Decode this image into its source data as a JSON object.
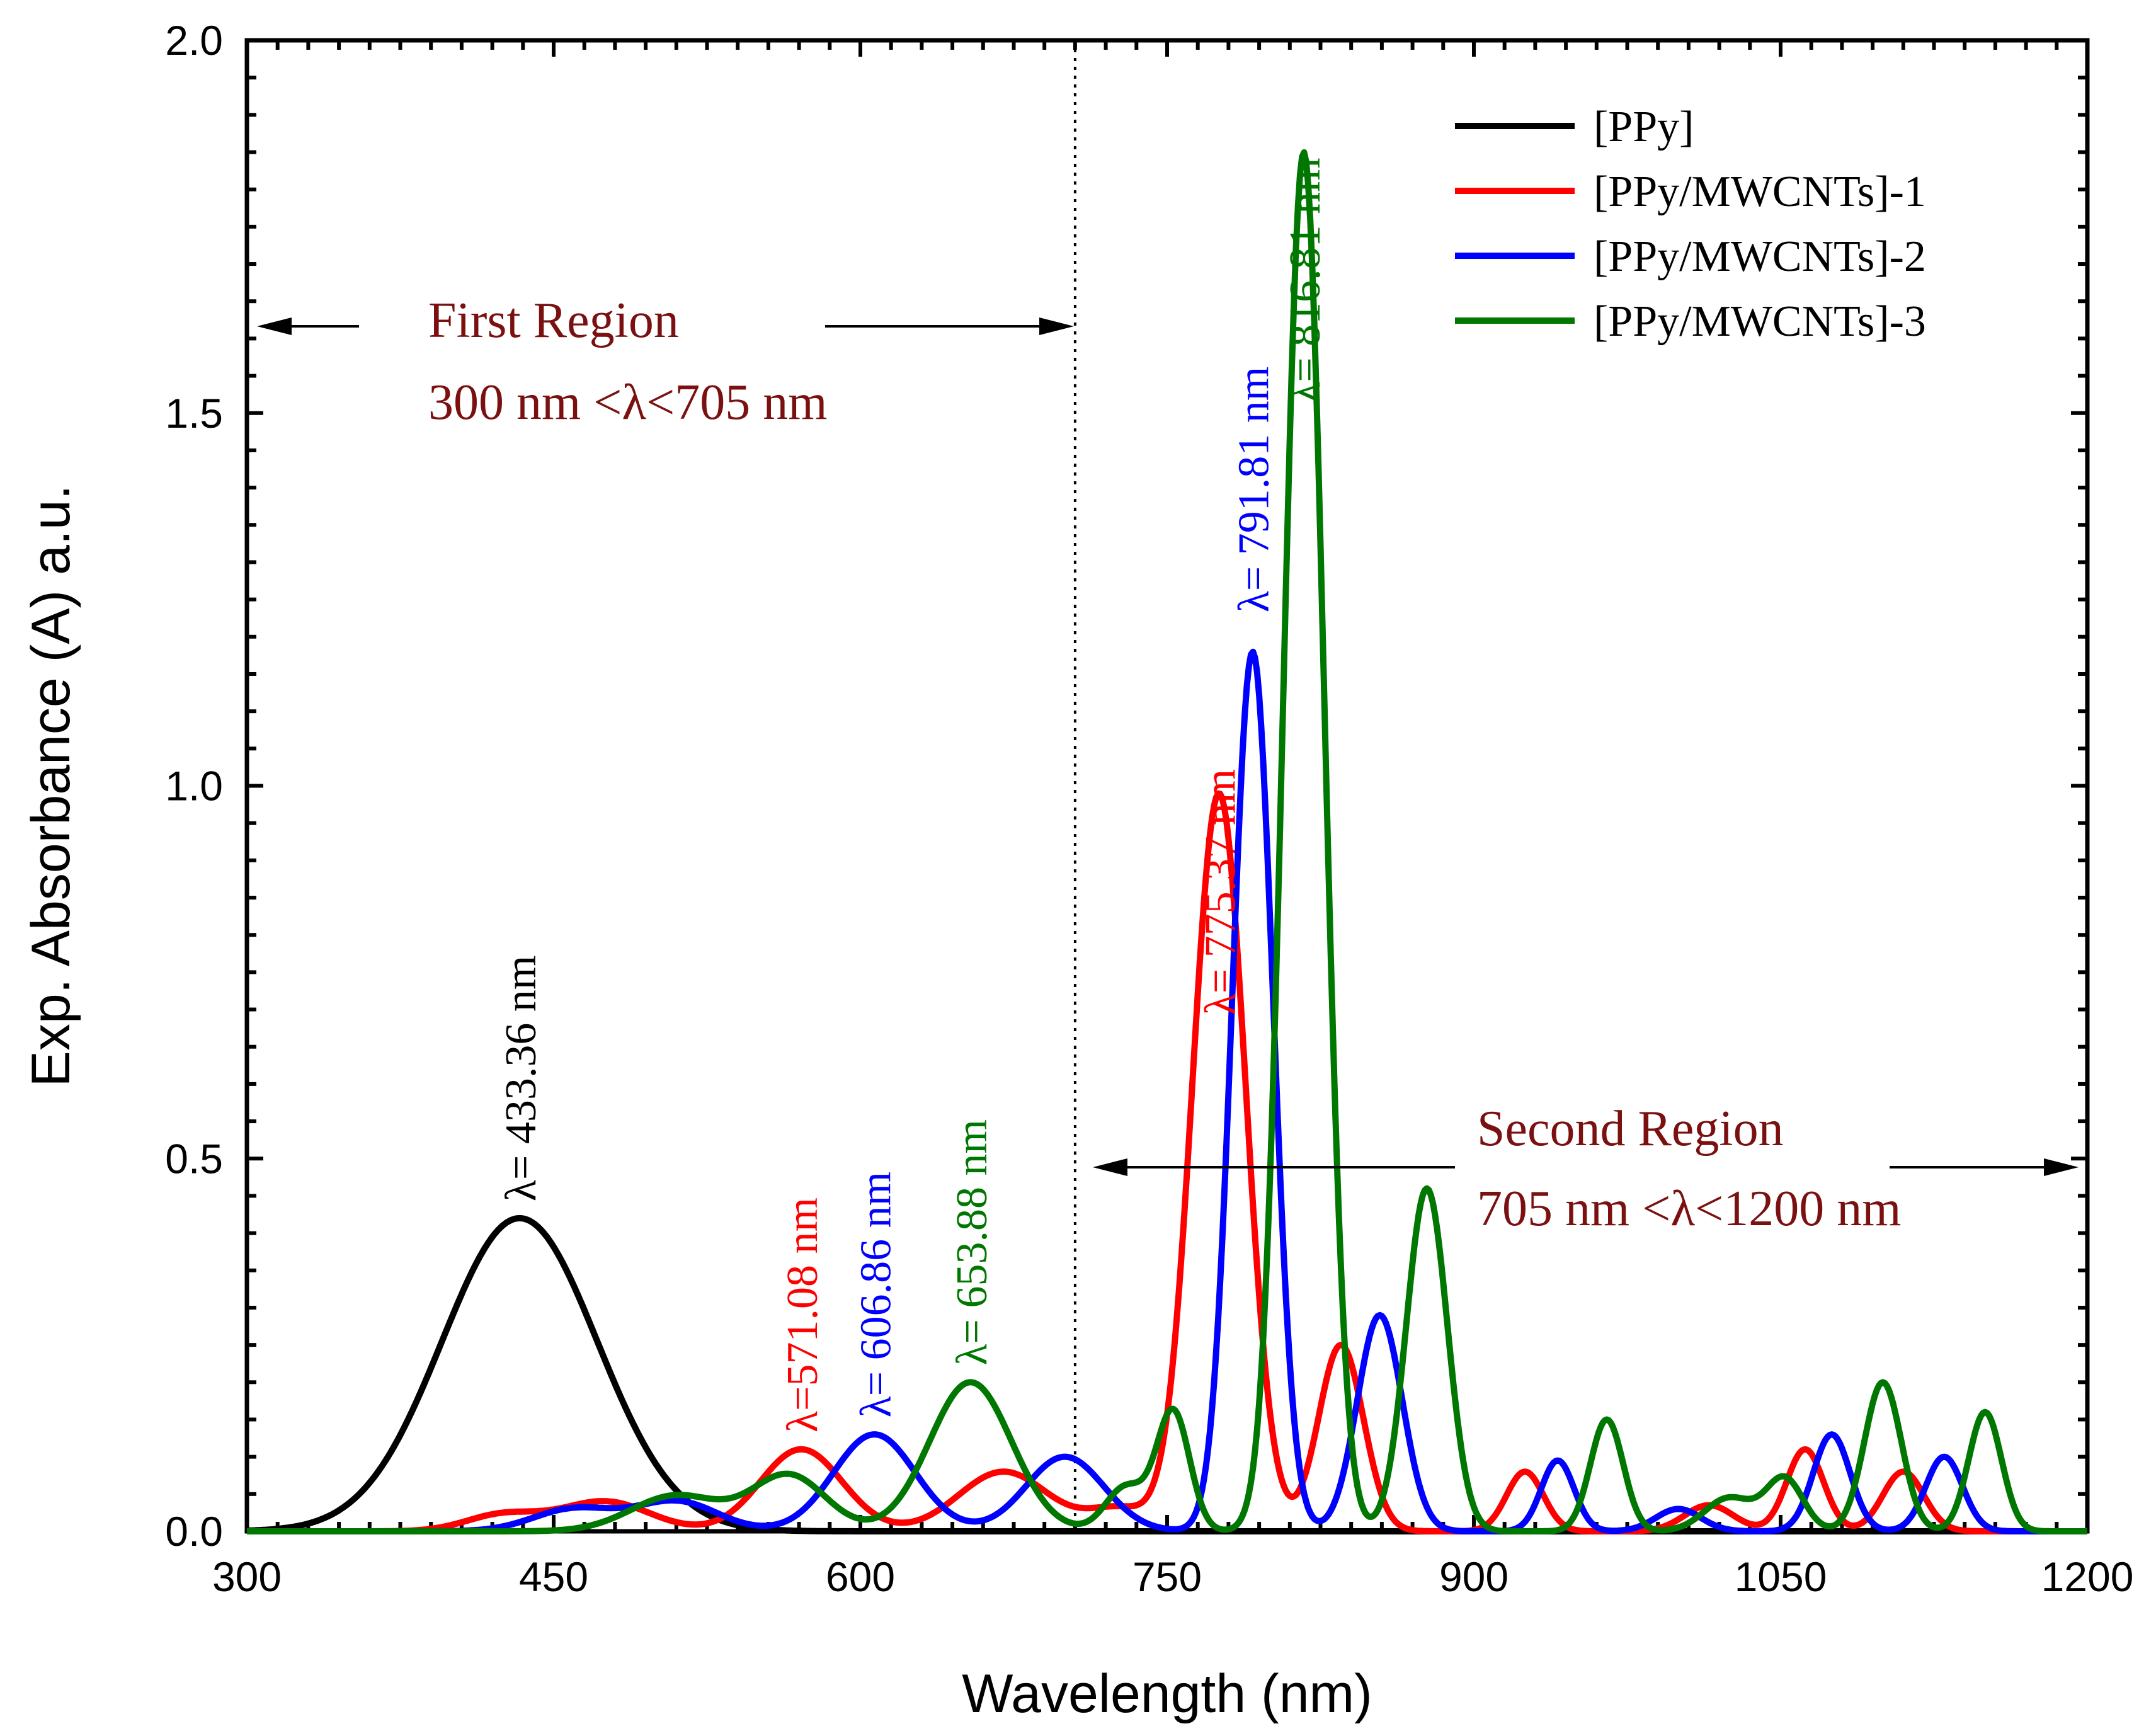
{
  "chart_data": {
    "type": "line",
    "title": "",
    "xlabel": "Wavelength (nm)",
    "ylabel": "Exp. Absorbance (A) a.u.",
    "xlim": [
      300,
      1200
    ],
    "ylim": [
      0,
      2.0
    ],
    "xticks": [
      300,
      450,
      600,
      750,
      900,
      1050,
      1200
    ],
    "xtick_labels": [
      "300",
      "450",
      "600",
      "750",
      "900",
      "1050",
      "1200"
    ],
    "yticks": [
      0.0,
      0.5,
      1.0,
      1.5,
      2.0
    ],
    "ytick_labels": [
      "0.0",
      "0.5",
      "1.0",
      "1.5",
      "2.0"
    ],
    "grid": false,
    "legend_position": "top-right",
    "divider_x": 705,
    "series": [
      {
        "name": "[PPy]",
        "color": "#000000",
        "peaks": [
          [
            433.36,
            0.42,
            38
          ]
        ]
      },
      {
        "name": "[PPy/MWCNTs]-1",
        "color": "#ff0000",
        "peaks": [
          [
            425,
            0.022,
            18
          ],
          [
            475,
            0.04,
            22
          ],
          [
            571.08,
            0.11,
            20
          ],
          [
            670,
            0.08,
            22
          ],
          [
            727,
            0.03,
            15
          ],
          [
            775.37,
            0.99,
            13
          ],
          [
            835,
            0.25,
            11
          ],
          [
            925,
            0.08,
            9
          ],
          [
            1015,
            0.035,
            12
          ],
          [
            1062,
            0.11,
            9
          ],
          [
            1110,
            0.08,
            10
          ]
        ]
      },
      {
        "name": "[PPy/MWCNTs]-2",
        "color": "#0000ff",
        "peaks": [
          [
            460,
            0.03,
            20
          ],
          [
            510,
            0.04,
            20
          ],
          [
            606.86,
            0.13,
            20
          ],
          [
            700,
            0.1,
            19
          ],
          [
            791.81,
            1.18,
            10
          ],
          [
            854,
            0.29,
            11
          ],
          [
            941,
            0.095,
            8
          ],
          [
            1000,
            0.03,
            11
          ],
          [
            1075,
            0.13,
            9
          ],
          [
            1130,
            0.1,
            9
          ]
        ]
      },
      {
        "name": "[PPy/MWCNTs]-3",
        "color": "#007700",
        "peaks": [
          [
            510,
            0.048,
            22
          ],
          [
            565,
            0.075,
            18
          ],
          [
            653.88,
            0.2,
            20
          ],
          [
            730,
            0.06,
            10
          ],
          [
            753,
            0.16,
            8
          ],
          [
            816.81,
            1.85,
            10
          ],
          [
            877,
            0.46,
            10
          ],
          [
            965,
            0.15,
            8
          ],
          [
            1025,
            0.045,
            12
          ],
          [
            1052,
            0.07,
            9
          ],
          [
            1100,
            0.2,
            9
          ],
          [
            1150,
            0.16,
            8
          ]
        ]
      }
    ],
    "annotations": [
      {
        "text": "λ= 433.36 nm",
        "x": 433.36,
        "y": 0.43,
        "color": "#000000"
      },
      {
        "text": "λ=571.08 nm",
        "x": 571.08,
        "y": 0.12,
        "color": "#ff0000"
      },
      {
        "text": "λ= 606.86 nm",
        "x": 606.86,
        "y": 0.14,
        "color": "#0000ff"
      },
      {
        "text": "λ= 653.88 nm",
        "x": 653.88,
        "y": 0.21,
        "color": "#007700"
      },
      {
        "text": "λ= 775.37 nm",
        "x": 775.37,
        "y": 0.68,
        "color": "#ff0000"
      },
      {
        "text": "λ= 791.81 nm",
        "x": 791.81,
        "y": 1.22,
        "color": "#0000ff"
      },
      {
        "text": "λ= 816.81 nm",
        "x": 816.81,
        "y": 1.5,
        "color": "#007700"
      }
    ],
    "regions": {
      "color": "#7a1010",
      "first": {
        "title": "First Region",
        "range": "300 nm <λ<705 nm"
      },
      "second": {
        "title": "Second Region",
        "range": "705 nm <λ<1200 nm"
      }
    }
  }
}
